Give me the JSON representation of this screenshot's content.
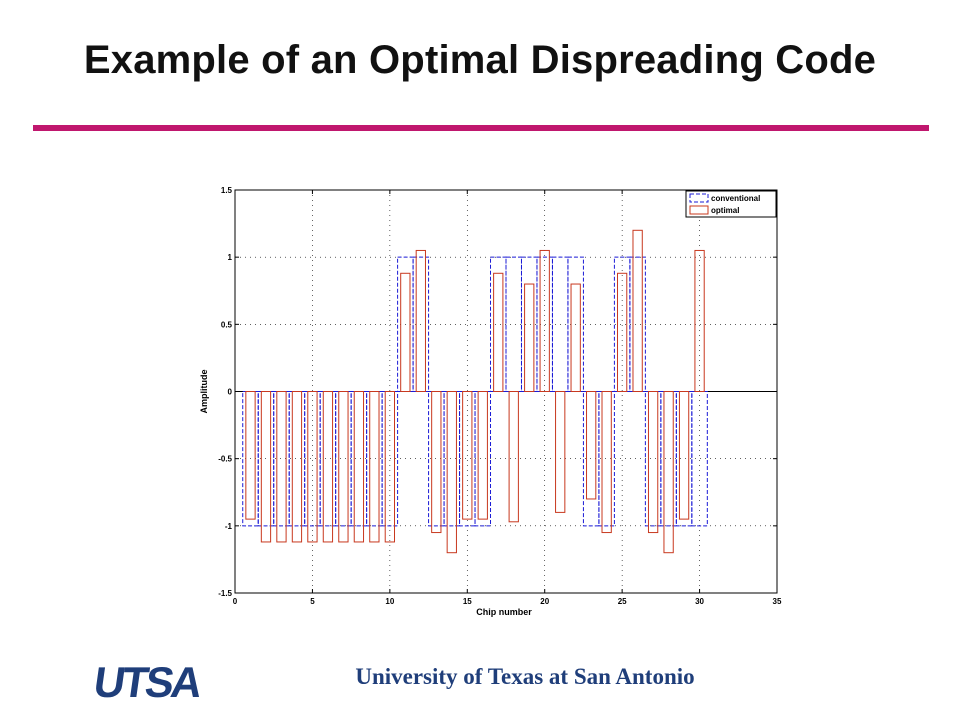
{
  "slide": {
    "title": "Example of an Optimal Dispreading Code",
    "footer": "University of Texas at San Antonio",
    "logo_text": "UTSA",
    "accent_color": "#c0176e",
    "footer_color": "#1f3e7a"
  },
  "chart_data": {
    "type": "bar",
    "title": "",
    "xlabel": "Chip number",
    "ylabel": "Amplitude",
    "xlim": [
      0,
      35
    ],
    "ylim": [
      -1.5,
      1.5
    ],
    "xticks": [
      0,
      5,
      10,
      15,
      20,
      25,
      30,
      35
    ],
    "yticks": [
      1.5,
      1,
      0.5,
      0,
      -0.5,
      -1,
      -1.5
    ],
    "ytick_labels": [
      "1.5",
      "1",
      "0.5",
      "0",
      "-0.5",
      "-1",
      "-1.5"
    ],
    "grid": true,
    "legend_position": "top-right",
    "x": [
      1,
      2,
      3,
      4,
      5,
      6,
      7,
      8,
      9,
      10,
      11,
      12,
      13,
      14,
      15,
      16,
      17,
      18,
      19,
      20,
      21,
      22,
      23,
      24,
      25,
      26,
      27,
      28,
      29,
      30
    ],
    "series": [
      {
        "name": "conventional",
        "style": "dashed",
        "color": "#1b1bd6",
        "bar_width": 1,
        "values": [
          -1,
          -1,
          -1,
          -1,
          -1,
          -1,
          -1,
          -1,
          -1,
          -1,
          1,
          1,
          -1,
          -1,
          -1,
          -1,
          1,
          1,
          1,
          1,
          1,
          1,
          -1,
          -1,
          1,
          1,
          -1,
          -1,
          -1,
          -1
        ]
      },
      {
        "name": "optimal",
        "style": "solid",
        "color": "#c8381e",
        "bar_width": 0.6,
        "values": [
          -0.95,
          -1.12,
          -1.12,
          -1.12,
          -1.12,
          -1.12,
          -1.12,
          -1.12,
          -1.12,
          -1.12,
          0.88,
          1.05,
          -1.05,
          -1.2,
          -0.95,
          -0.95,
          0.88,
          -0.97,
          0.8,
          1.05,
          -0.9,
          0.8,
          -0.8,
          -1.05,
          0.88,
          1.2,
          -1.05,
          -1.2,
          -0.95,
          1.05
        ]
      }
    ]
  }
}
